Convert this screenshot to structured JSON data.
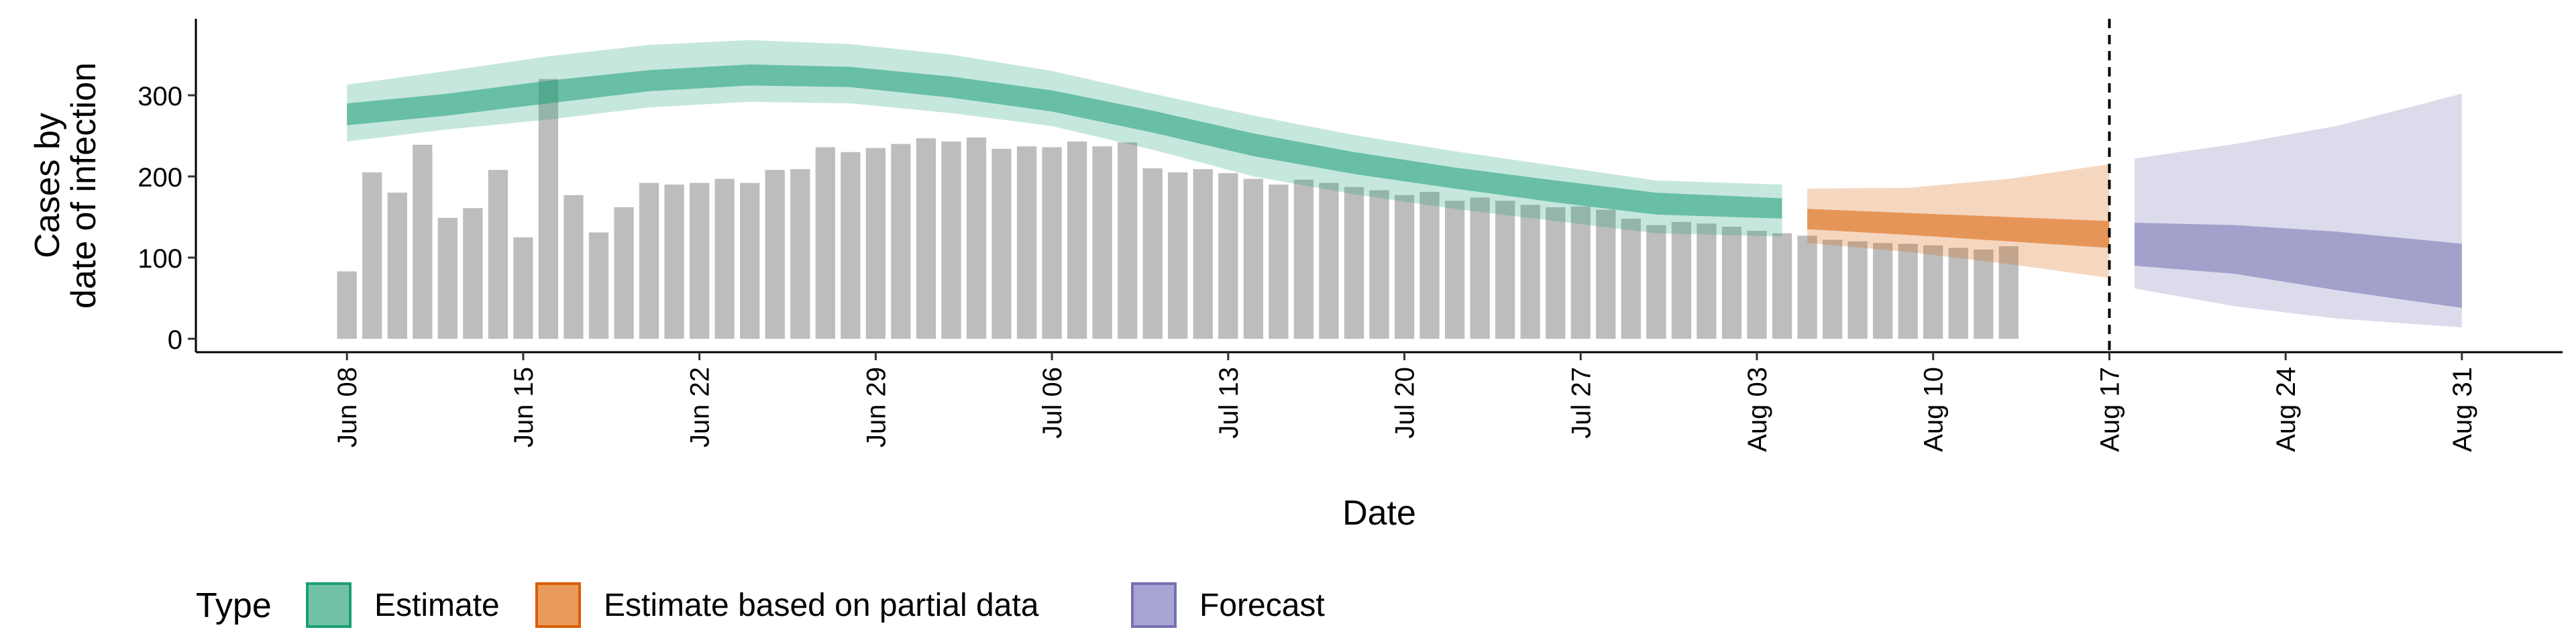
{
  "chart_data": {
    "type": "bar",
    "xlabel": "Date",
    "ylabel": [
      "Cases by",
      "date of infection"
    ],
    "ylim": [
      0,
      390
    ],
    "y_ticks": [
      0,
      100,
      200,
      300
    ],
    "x_ticks": [
      {
        "date": "2020-06-08",
        "label": "Jun 08"
      },
      {
        "date": "2020-06-15",
        "label": "Jun 15"
      },
      {
        "date": "2020-06-22",
        "label": "Jun 22"
      },
      {
        "date": "2020-06-29",
        "label": "Jun 29"
      },
      {
        "date": "2020-07-06",
        "label": "Jul 06"
      },
      {
        "date": "2020-07-13",
        "label": "Jul 13"
      },
      {
        "date": "2020-07-20",
        "label": "Jul 20"
      },
      {
        "date": "2020-07-27",
        "label": "Jul 27"
      },
      {
        "date": "2020-08-03",
        "label": "Aug 03"
      },
      {
        "date": "2020-08-10",
        "label": "Aug 10"
      },
      {
        "date": "2020-08-17",
        "label": "Aug 17"
      },
      {
        "date": "2020-08-24",
        "label": "Aug 24"
      },
      {
        "date": "2020-08-31",
        "label": "Aug 31"
      }
    ],
    "x_range": [
      "2020-06-02",
      "2020-09-04"
    ],
    "cutoff_date": "2020-08-17",
    "bars": {
      "start_date": "2020-06-08",
      "values": [
        83,
        205,
        180,
        239,
        149,
        161,
        208,
        125,
        320,
        177,
        131,
        162,
        192,
        190,
        192,
        197,
        192,
        208,
        209,
        236,
        230,
        235,
        240,
        247,
        243,
        248,
        234,
        237,
        236,
        243,
        237,
        242,
        210,
        205,
        209,
        204,
        197,
        190,
        196,
        192,
        187,
        183,
        177,
        181,
        170,
        174,
        170,
        165,
        162,
        163,
        159,
        148,
        140,
        144,
        142,
        138,
        133,
        130,
        127,
        122,
        120,
        118,
        117,
        115,
        112,
        110,
        114
      ]
    },
    "series": [
      {
        "name": "Estimate",
        "color": "#1b9e77",
        "dates": [
          "2020-06-08",
          "2020-06-12",
          "2020-06-16",
          "2020-06-20",
          "2020-06-24",
          "2020-06-28",
          "2020-07-02",
          "2020-07-06",
          "2020-07-10",
          "2020-07-14",
          "2020-07-18",
          "2020-07-22",
          "2020-07-26",
          "2020-07-30",
          "2020-08-04"
        ],
        "lower90": [
          243,
          258,
          270,
          285,
          292,
          290,
          278,
          262,
          233,
          200,
          178,
          160,
          145,
          130,
          126
        ],
        "lower50": [
          263,
          275,
          290,
          305,
          312,
          310,
          297,
          280,
          254,
          225,
          203,
          185,
          168,
          153,
          148
        ],
        "upper50": [
          290,
          302,
          318,
          331,
          338,
          335,
          323,
          306,
          281,
          253,
          230,
          211,
          195,
          180,
          173
        ],
        "upper90": [
          313,
          330,
          348,
          362,
          368,
          363,
          350,
          330,
          302,
          275,
          251,
          231,
          213,
          195,
          190
        ]
      },
      {
        "name": "Estimate based on partial data",
        "color": "#d95f02",
        "dates": [
          "2020-08-05",
          "2020-08-09",
          "2020-08-13",
          "2020-08-17"
        ],
        "lower90": [
          118,
          107,
          92,
          75
        ],
        "lower50": [
          135,
          128,
          120,
          112
        ],
        "upper50": [
          160,
          155,
          150,
          145
        ],
        "upper90": [
          185,
          186,
          197,
          215
        ]
      },
      {
        "name": "Forecast",
        "color": "#7570b3",
        "dates": [
          "2020-08-18",
          "2020-08-22",
          "2020-08-26",
          "2020-08-31"
        ],
        "lower90": [
          62,
          40,
          25,
          14
        ],
        "lower50": [
          90,
          80,
          60,
          38
        ],
        "upper50": [
          143,
          140,
          132,
          117
        ],
        "upper90": [
          222,
          240,
          262,
          302
        ]
      }
    ],
    "legend": {
      "title": "Type",
      "position": "bottom",
      "items": [
        {
          "label": "Estimate",
          "fill": "#72c3a6",
          "stroke": "#1b9e77"
        },
        {
          "label": "Estimate based on partial data",
          "fill": "#e89a5b",
          "stroke": "#d95f02"
        },
        {
          "label": "Forecast",
          "fill": "#a8a5d4",
          "stroke": "#7570b3"
        }
      ]
    },
    "bar_color": "#bdbdbd",
    "grid": false
  }
}
